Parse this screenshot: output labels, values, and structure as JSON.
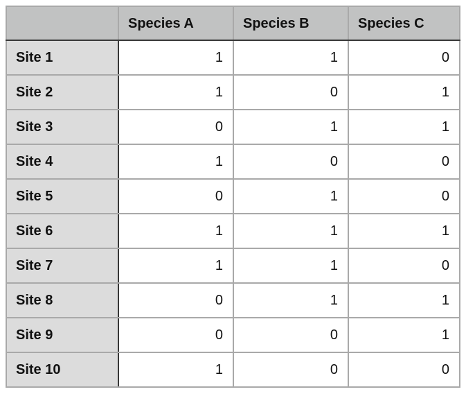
{
  "table": {
    "corner_label": "",
    "columns": [
      "Species A",
      "Species B",
      "Species C"
    ],
    "rows": [
      {
        "label": "Site 1",
        "values": [
          1,
          1,
          0
        ]
      },
      {
        "label": "Site 2",
        "values": [
          1,
          0,
          1
        ]
      },
      {
        "label": "Site 3",
        "values": [
          0,
          1,
          1
        ]
      },
      {
        "label": "Site 4",
        "values": [
          1,
          0,
          0
        ]
      },
      {
        "label": "Site 5",
        "values": [
          0,
          1,
          0
        ]
      },
      {
        "label": "Site 6",
        "values": [
          1,
          1,
          1
        ]
      },
      {
        "label": "Site 7",
        "values": [
          1,
          1,
          0
        ]
      },
      {
        "label": "Site 8",
        "values": [
          0,
          1,
          1
        ]
      },
      {
        "label": "Site 9",
        "values": [
          0,
          0,
          1
        ]
      },
      {
        "label": "Site 10",
        "values": [
          1,
          0,
          0
        ]
      }
    ]
  },
  "chart_data": {
    "type": "table",
    "title": "",
    "columns": [
      "Species A",
      "Species B",
      "Species C"
    ],
    "row_labels": [
      "Site 1",
      "Site 2",
      "Site 3",
      "Site 4",
      "Site 5",
      "Site 6",
      "Site 7",
      "Site 8",
      "Site 9",
      "Site 10"
    ],
    "matrix": [
      [
        1,
        1,
        0
      ],
      [
        1,
        0,
        1
      ],
      [
        0,
        1,
        1
      ],
      [
        1,
        0,
        0
      ],
      [
        0,
        1,
        0
      ],
      [
        1,
        1,
        1
      ],
      [
        1,
        1,
        0
      ],
      [
        0,
        1,
        1
      ],
      [
        0,
        0,
        1
      ],
      [
        1,
        0,
        0
      ]
    ]
  },
  "colors": {
    "header_bg": "#c1c2c2",
    "row_label_bg": "#dcdcdc",
    "cell_bg": "#ffffff",
    "grid_line": "#a9a9a9",
    "emphasis_line": "#383838",
    "text": "#111111"
  }
}
